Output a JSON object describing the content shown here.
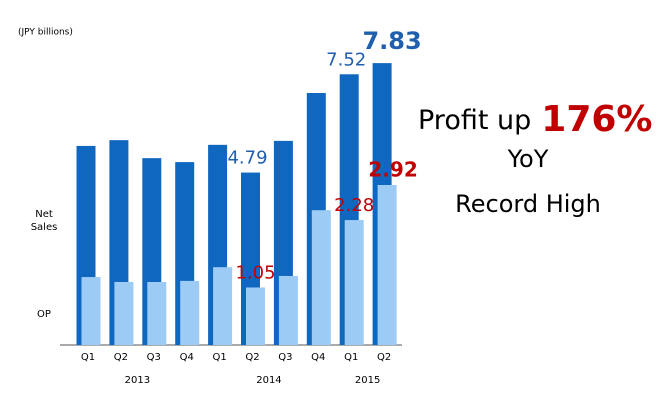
{
  "chart_data": {
    "type": "bar",
    "unit_label": "(JPY billions)",
    "categories": [
      "Q1",
      "Q2",
      "Q3",
      "Q4",
      "Q1",
      "Q2",
      "Q3",
      "Q4",
      "Q1",
      "Q2"
    ],
    "years": [
      "2013",
      "2013",
      "2013",
      "2013",
      "2014",
      "2014",
      "2014",
      "2014",
      "2015",
      "2015"
    ],
    "series": [
      {
        "name": "Net Sales",
        "color": "#0f67bf",
        "label_color": "#1f5fad",
        "values": [
          5.53,
          5.69,
          5.19,
          5.08,
          5.56,
          4.79,
          5.67,
          7.0,
          7.52,
          7.83
        ],
        "value_labels": [
          null,
          null,
          null,
          null,
          null,
          "4.79",
          null,
          null,
          "7.52",
          "7.83"
        ]
      },
      {
        "name": "OP",
        "color": "#9ccbf5",
        "label_color": "#c00000",
        "values": [
          1.24,
          1.15,
          1.15,
          1.17,
          1.42,
          1.05,
          1.26,
          2.46,
          2.28,
          2.92
        ],
        "value_labels": [
          null,
          null,
          null,
          null,
          null,
          "1.05",
          null,
          null,
          "2.28",
          "2.92"
        ]
      }
    ],
    "annotations": [
      "Profit up",
      "176%",
      "YoY",
      "Record High"
    ]
  }
}
